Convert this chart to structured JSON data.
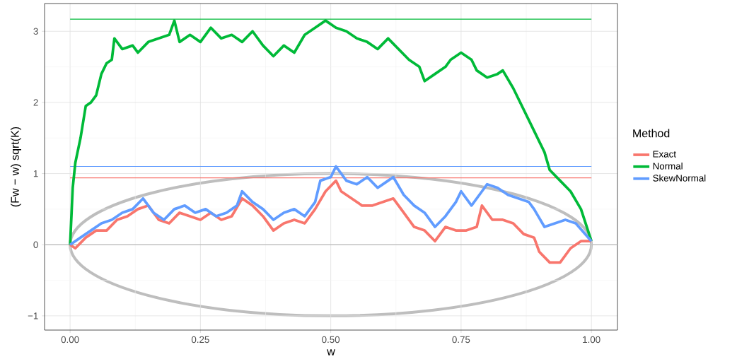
{
  "chart_data": {
    "type": "line",
    "xlabel": "w",
    "ylabel": "(Fw − w) sqrt(K)",
    "legend_title": "Method",
    "legend": "right",
    "grid": true,
    "line_style": "solid",
    "marker": "none",
    "xlim": [
      -0.049,
      1.05
    ],
    "ylim": [
      -1.2,
      3.39
    ],
    "xticks": [
      {
        "value": 0,
        "label": "0.00"
      },
      {
        "value": 0.25,
        "label": "0.25"
      },
      {
        "value": 0.5,
        "label": "0.50"
      },
      {
        "value": 0.75,
        "label": "0.75"
      },
      {
        "value": 1,
        "label": "1.00"
      }
    ],
    "yticks": [
      {
        "value": -1,
        "label": "−1"
      },
      0,
      1,
      2,
      3
    ],
    "ref_lines": [
      {
        "axis": "y",
        "value": 0,
        "color": "#bebebe"
      }
    ],
    "series": [
      {
        "color": "#00ba38",
        "x": [
          0,
          1
        ],
        "values": [
          3.17,
          3.17
        ]
      },
      {
        "color": "#619cff",
        "x": [
          0,
          1
        ],
        "values": [
          1.1,
          1.1
        ]
      },
      {
        "color": "#f8766d",
        "x": [
          0,
          1
        ],
        "values": [
          0.94,
          0.94
        ]
      },
      {
        "name": "Exact",
        "color": "#f8766d",
        "x": [
          0,
          0.01,
          0.03,
          0.05,
          0.07,
          0.09,
          0.11,
          0.13,
          0.15,
          0.17,
          0.19,
          0.21,
          0.23,
          0.25,
          0.27,
          0.29,
          0.31,
          0.33,
          0.35,
          0.37,
          0.39,
          0.41,
          0.43,
          0.45,
          0.47,
          0.49,
          0.51,
          0.52,
          0.54,
          0.56,
          0.58,
          0.6,
          0.62,
          0.64,
          0.66,
          0.68,
          0.7,
          0.72,
          0.74,
          0.76,
          0.78,
          0.79,
          0.81,
          0.83,
          0.85,
          0.87,
          0.89,
          0.9,
          0.92,
          0.94,
          0.96,
          0.98,
          1
        ],
        "values": [
          0,
          -0.05,
          0.1,
          0.2,
          0.2,
          0.35,
          0.4,
          0.5,
          0.55,
          0.35,
          0.3,
          0.45,
          0.4,
          0.35,
          0.45,
          0.35,
          0.4,
          0.65,
          0.55,
          0.4,
          0.2,
          0.3,
          0.35,
          0.3,
          0.5,
          0.75,
          0.9,
          0.75,
          0.65,
          0.55,
          0.55,
          0.6,
          0.65,
          0.45,
          0.25,
          0.2,
          0.05,
          0.25,
          0.2,
          0.2,
          0.25,
          0.55,
          0.35,
          0.35,
          0.3,
          0.15,
          0.1,
          -0.1,
          -0.25,
          -0.25,
          -0.05,
          0.05,
          0.05
        ]
      },
      {
        "name": "Normal",
        "color": "#00ba38",
        "x": [
          0,
          0.005,
          0.01,
          0.02,
          0.03,
          0.04,
          0.05,
          0.06,
          0.07,
          0.08,
          0.085,
          0.1,
          0.12,
          0.13,
          0.15,
          0.17,
          0.19,
          0.2,
          0.21,
          0.23,
          0.25,
          0.27,
          0.29,
          0.31,
          0.33,
          0.35,
          0.37,
          0.39,
          0.41,
          0.43,
          0.45,
          0.47,
          0.49,
          0.51,
          0.53,
          0.55,
          0.57,
          0.59,
          0.61,
          0.63,
          0.65,
          0.67,
          0.68,
          0.7,
          0.72,
          0.73,
          0.75,
          0.77,
          0.78,
          0.8,
          0.82,
          0.83,
          0.85,
          0.87,
          0.89,
          0.91,
          0.92,
          0.94,
          0.96,
          0.98,
          1
        ],
        "values": [
          0,
          0.8,
          1.15,
          1.5,
          1.95,
          2,
          2.1,
          2.4,
          2.55,
          2.6,
          2.9,
          2.75,
          2.8,
          2.7,
          2.85,
          2.9,
          2.95,
          3.15,
          2.85,
          2.95,
          2.85,
          3.05,
          2.9,
          2.95,
          2.85,
          3,
          2.8,
          2.65,
          2.8,
          2.7,
          2.95,
          3.05,
          3.15,
          3.05,
          3,
          2.9,
          2.85,
          2.75,
          2.9,
          2.75,
          2.6,
          2.5,
          2.3,
          2.4,
          2.5,
          2.6,
          2.7,
          2.6,
          2.45,
          2.35,
          2.4,
          2.45,
          2.2,
          1.9,
          1.6,
          1.3,
          1.05,
          0.9,
          0.75,
          0.5,
          0.05
        ]
      },
      {
        "name": "SkewNormal",
        "color": "#619cff",
        "x": [
          0,
          0.02,
          0.04,
          0.06,
          0.08,
          0.1,
          0.12,
          0.14,
          0.16,
          0.18,
          0.2,
          0.22,
          0.24,
          0.26,
          0.28,
          0.3,
          0.32,
          0.33,
          0.35,
          0.37,
          0.39,
          0.41,
          0.43,
          0.45,
          0.47,
          0.48,
          0.5,
          0.51,
          0.53,
          0.55,
          0.57,
          0.59,
          0.61,
          0.62,
          0.64,
          0.66,
          0.68,
          0.7,
          0.72,
          0.74,
          0.75,
          0.77,
          0.79,
          0.8,
          0.82,
          0.84,
          0.86,
          0.88,
          0.89,
          0.91,
          0.93,
          0.95,
          0.97,
          1
        ],
        "values": [
          0,
          0.1,
          0.2,
          0.3,
          0.35,
          0.45,
          0.5,
          0.65,
          0.45,
          0.35,
          0.5,
          0.55,
          0.45,
          0.5,
          0.4,
          0.45,
          0.55,
          0.75,
          0.6,
          0.5,
          0.35,
          0.45,
          0.5,
          0.4,
          0.6,
          0.9,
          0.95,
          1.1,
          0.9,
          0.85,
          0.95,
          0.8,
          0.9,
          0.95,
          0.7,
          0.55,
          0.45,
          0.25,
          0.4,
          0.6,
          0.75,
          0.55,
          0.75,
          0.85,
          0.8,
          0.7,
          0.65,
          0.6,
          0.5,
          0.25,
          0.3,
          0.35,
          0.3,
          0.05
        ]
      }
    ]
  }
}
